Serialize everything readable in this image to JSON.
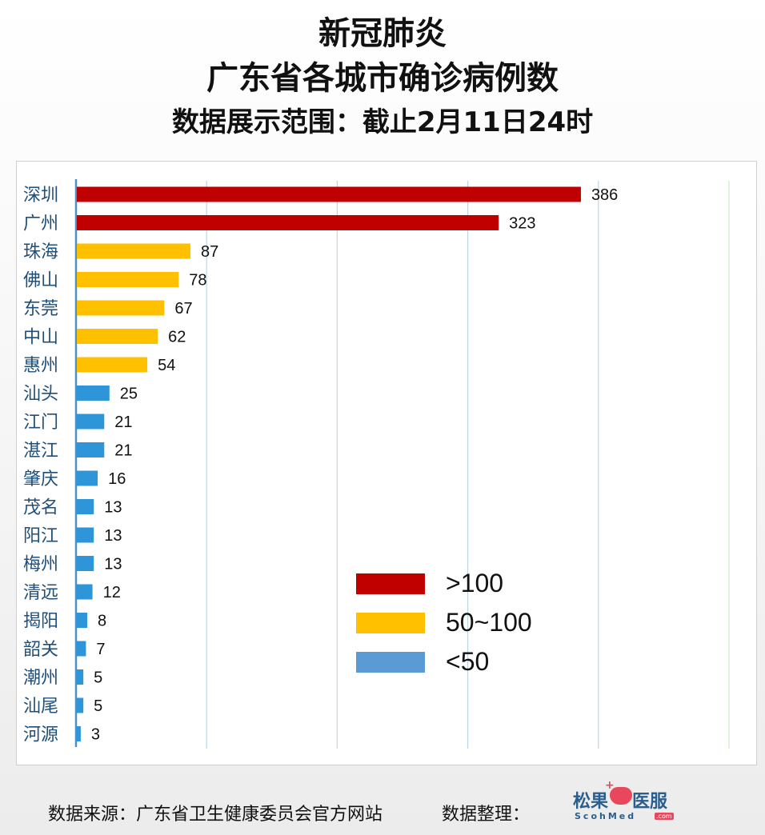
{
  "header": {
    "line1": "新冠肺炎",
    "line2": "广东省各城市确诊病例数",
    "line3": "数据展示范围：截止2月11日24时"
  },
  "footer": {
    "source": "数据来源：广东省卫生健康委员会官方网站",
    "credit": "数据整理："
  },
  "logo": {
    "name_left": "松果",
    "name_right": "医服",
    "sub": "ScohMed",
    "com": ".com"
  },
  "colors": {
    "high": "#c00000",
    "mid": "#ffc000",
    "low": "#2e95d9",
    "legend_low": "#5b9bd5",
    "label": "#1f4e79",
    "grid": "#bcd6e8"
  },
  "chart_data": {
    "type": "bar",
    "orientation": "horizontal",
    "title": "广东省各城市确诊病例数",
    "categories": [
      "深圳",
      "广州",
      "珠海",
      "佛山",
      "东莞",
      "中山",
      "惠州",
      "汕头",
      "江门",
      "湛江",
      "肇庆",
      "茂名",
      "阳江",
      "梅州",
      "清远",
      "揭阳",
      "韶关",
      "潮州",
      "汕尾",
      "河源"
    ],
    "values": [
      386,
      323,
      87,
      78,
      67,
      62,
      54,
      25,
      21,
      21,
      16,
      13,
      13,
      13,
      12,
      8,
      7,
      5,
      5,
      3
    ],
    "xlim": [
      0,
      500
    ],
    "grid": true,
    "legend": {
      "position": "bottom-right",
      "items": [
        {
          "label": ">100",
          "color": "#c00000"
        },
        {
          "label": "50~100",
          "color": "#ffc000"
        },
        {
          "label": "<50",
          "color": "#5b9bd5"
        }
      ]
    }
  }
}
